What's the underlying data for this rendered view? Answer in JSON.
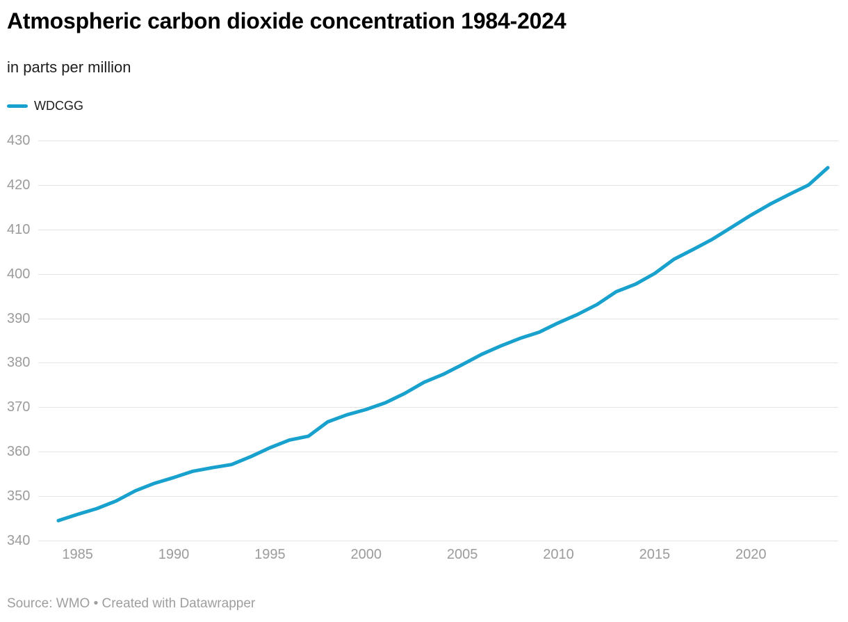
{
  "header": {
    "title": "Atmospheric carbon dioxide concentration 1984-2024",
    "subtitle": "in parts per million"
  },
  "legend": {
    "label": "WDCGG",
    "swatch_color": "#18a1cd"
  },
  "footer": {
    "source_text": "Source: WMO • Created with Datawrapper"
  },
  "colors": {
    "line": "#18a1cd",
    "grid": "#e3e3e3",
    "axis_text": "#9b9b9b",
    "title_text": "#000000",
    "subtitle_text": "#1d1d1d",
    "source_text": "#9e9e9e"
  },
  "chart_data": {
    "type": "line",
    "title": "Atmospheric carbon dioxide concentration 1984-2024",
    "subtitle": "in parts per million",
    "xlabel": "",
    "ylabel": "in parts per million",
    "xlim": [
      1984,
      2024
    ],
    "ylim": [
      340,
      430
    ],
    "yticks": [
      340,
      350,
      360,
      370,
      380,
      390,
      400,
      410,
      420,
      430
    ],
    "xticks": [
      1985,
      1990,
      1995,
      2000,
      2005,
      2010,
      2015,
      2020
    ],
    "grid": "horizontal",
    "legend_position": "top-left",
    "series": [
      {
        "name": "WDCGG",
        "color": "#18a1cd",
        "x": [
          1984,
          1985,
          1986,
          1987,
          1988,
          1989,
          1990,
          1991,
          1992,
          1993,
          1994,
          1995,
          1996,
          1997,
          1998,
          1999,
          2000,
          2001,
          2002,
          2003,
          2004,
          2005,
          2006,
          2007,
          2008,
          2009,
          2010,
          2011,
          2012,
          2013,
          2014,
          2015,
          2016,
          2017,
          2018,
          2019,
          2020,
          2021,
          2022,
          2023,
          2024
        ],
        "values": [
          344.5,
          345.9,
          347.2,
          348.9,
          351.2,
          352.9,
          354.2,
          355.6,
          356.4,
          357.1,
          358.9,
          360.9,
          362.6,
          363.5,
          366.7,
          368.3,
          369.5,
          371.0,
          373.1,
          375.6,
          377.4,
          379.6,
          381.9,
          383.8,
          385.5,
          386.9,
          389.0,
          390.9,
          393.1,
          396.0,
          397.7,
          400.1,
          403.3,
          405.5,
          407.8,
          410.5,
          413.2,
          415.7,
          417.9,
          420.0,
          423.9
        ]
      }
    ]
  }
}
